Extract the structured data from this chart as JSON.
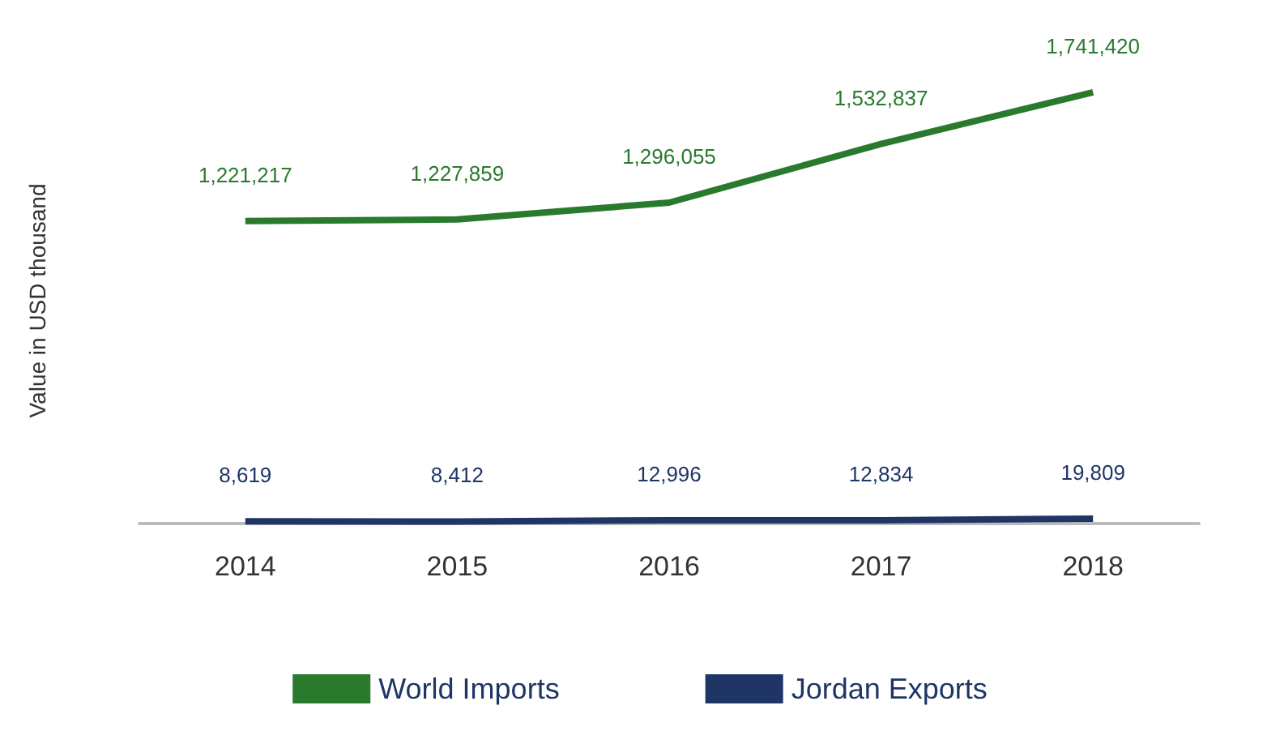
{
  "chart_data": {
    "type": "line",
    "ylabel": "Value in USD thousand",
    "categories": [
      "2014",
      "2015",
      "2016",
      "2017",
      "2018"
    ],
    "series": [
      {
        "name": "World Imports",
        "color": "#2a7a2e",
        "values": [
          1221217,
          1227859,
          1296055,
          1532837,
          1741420
        ],
        "value_labels": [
          "1,221,217",
          "1,227,859",
          "1,296,055",
          "1,532,837",
          "1,741,420"
        ]
      },
      {
        "name": "Jordan Exports",
        "color": "#1f3566",
        "values": [
          8619,
          8412,
          12996,
          12834,
          19809
        ],
        "value_labels": [
          "8,619",
          "8,412",
          "12,996",
          "12,834",
          "19,809"
        ]
      }
    ],
    "legend": "bottom",
    "grid": false,
    "marker": "none",
    "tick_labels": "x"
  }
}
